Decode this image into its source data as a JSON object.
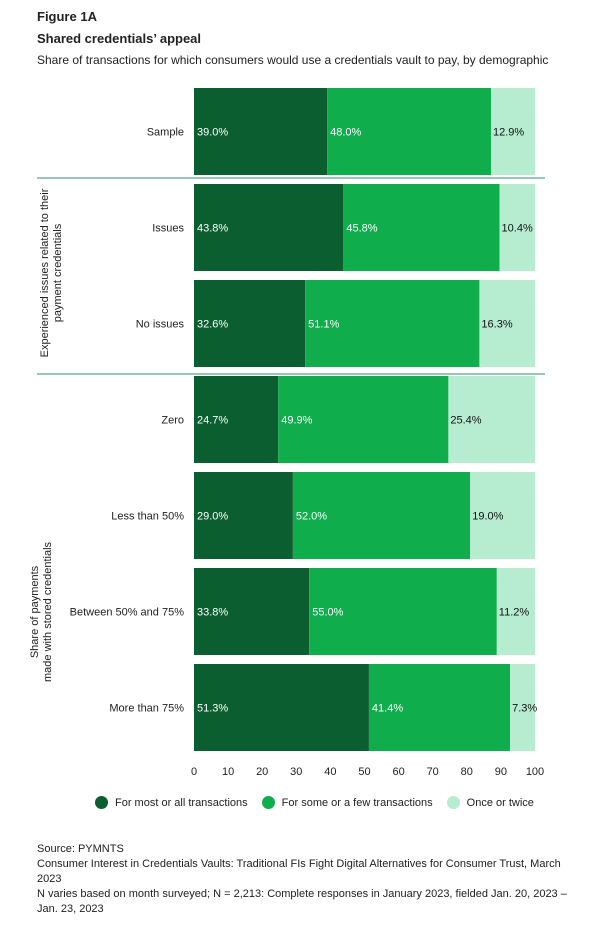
{
  "header": {
    "figure_label": "Figure 1A",
    "title": "Shared credentials’ appeal",
    "subtitle": "Share of transactions for which consumers would use a credentials vault to pay, by demographic"
  },
  "chart_data": {
    "type": "bar",
    "orientation": "horizontal",
    "stacked": true,
    "categories": [
      "Sample",
      "Issues",
      "No issues",
      "Zero",
      "Less than 50%",
      "Between 50% and 75%",
      "More than 75%"
    ],
    "groups": [
      {
        "label": "",
        "categories": [
          "Sample"
        ]
      },
      {
        "label": "Experienced issues related to their payment credentials",
        "categories": [
          "Issues",
          "No issues"
        ]
      },
      {
        "label": "Share of payments made with stored credentials",
        "categories": [
          "Zero",
          "Less than 50%",
          "Between 50% and 75%",
          "More than 75%"
        ]
      }
    ],
    "series": [
      {
        "name": "For most or all transactions",
        "color": "#0b5e2f",
        "values": [
          39.0,
          43.8,
          32.6,
          24.7,
          29.0,
          33.8,
          51.3
        ],
        "labels": [
          "39.0%",
          "43.8%",
          "32.6%",
          "24.7%",
          "29.0%",
          "33.8%",
          "51.3%"
        ]
      },
      {
        "name": "For some or a few transactions",
        "color": "#10ad4c",
        "values": [
          48.0,
          45.8,
          51.1,
          49.9,
          52.0,
          55.0,
          41.4
        ],
        "labels": [
          "48.0%",
          "45.8%",
          "51.1%",
          "49.9%",
          "52.0%",
          "55.0%",
          "41.4%"
        ]
      },
      {
        "name": "Once or twice",
        "color": "#b6ecd0",
        "values": [
          12.9,
          10.4,
          16.3,
          25.4,
          19.0,
          11.2,
          7.3
        ],
        "labels": [
          "12.9%",
          "10.4%",
          "16.3%",
          "25.4%",
          "19.0%",
          "11.2%",
          "7.3%"
        ]
      }
    ],
    "xlim": [
      0,
      100
    ],
    "xticks": [
      "0",
      "10",
      "20",
      "30",
      "40",
      "50",
      "60",
      "70",
      "80",
      "90",
      "100"
    ],
    "xtick_values": [
      0,
      10,
      20,
      30,
      40,
      50,
      60,
      70,
      80,
      90,
      100
    ],
    "legend_position": "bottom",
    "grid": false
  },
  "notes": {
    "source": "Source: PYMNTS",
    "report": "Consumer Interest in Credentials Vaults: Traditional FIs Fight Digital Alternatives for Consumer Trust, March 2023",
    "methodology": "N varies based on month surveyed; N = 2,213: Complete responses in January 2023, fielded Jan. 20, 2023 – Jan. 23, 2023"
  }
}
